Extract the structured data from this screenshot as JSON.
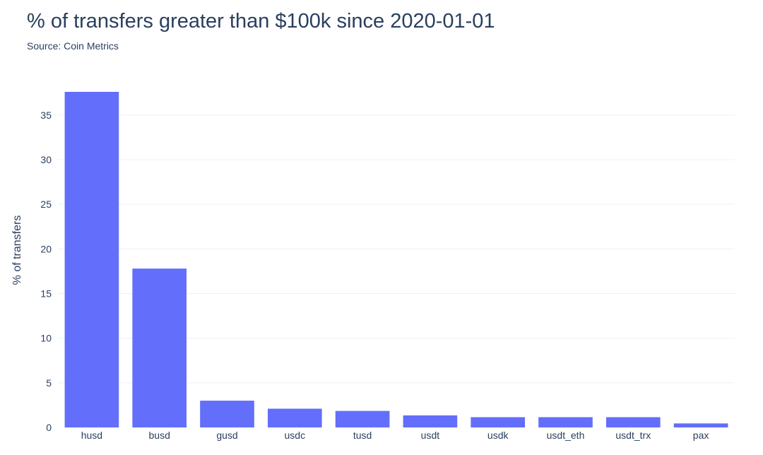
{
  "title": "% of transfers greater than $100k since 2020-01-01",
  "subtitle": "Source: Coin Metrics",
  "colors": {
    "bar": "#636efa",
    "grid": "#ebf0f8",
    "text": "#2a3f5f",
    "background": "#ffffff"
  },
  "chart_data": {
    "type": "bar",
    "title": "% of transfers greater than $100k since 2020-01-01",
    "subtitle": "Source: Coin Metrics",
    "xlabel": "",
    "ylabel": "% of transfers",
    "categories": [
      "husd",
      "busd",
      "gusd",
      "usdc",
      "tusd",
      "usdt",
      "usdk",
      "usdt_eth",
      "usdt_trx",
      "pax"
    ],
    "values": [
      37.6,
      17.8,
      3.0,
      2.1,
      1.85,
      1.35,
      1.15,
      1.15,
      1.15,
      0.45
    ],
    "ylim": [
      0,
      37.6
    ],
    "yticks": [
      0,
      5,
      10,
      15,
      20,
      25,
      30,
      35
    ],
    "grid": true,
    "legend": "none"
  }
}
